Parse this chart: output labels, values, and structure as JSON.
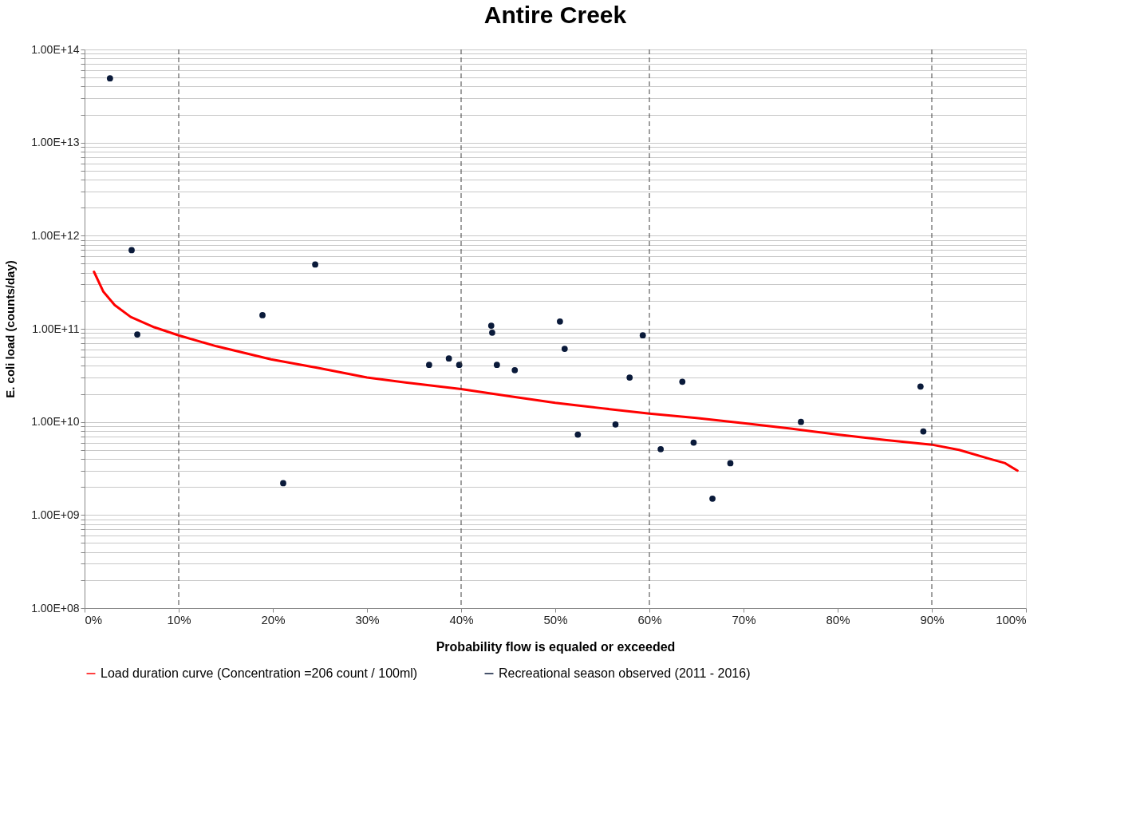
{
  "chart_data": {
    "type": "scatter",
    "title": "Antire Creek",
    "xlabel": "Probability flow is equaled or exceeded",
    "ylabel": "E. coli load (counts/day)",
    "log": "y",
    "grid": "y",
    "legend": "bottom",
    "xlim": [
      0,
      100
    ],
    "xticks": [
      {
        "value": 0,
        "label": "0%"
      },
      {
        "value": 10,
        "label": "10%"
      },
      {
        "value": 20,
        "label": "20%"
      },
      {
        "value": 30,
        "label": "30%"
      },
      {
        "value": 40,
        "label": "40%"
      },
      {
        "value": 50,
        "label": "50%"
      },
      {
        "value": 60,
        "label": "60%"
      },
      {
        "value": 70,
        "label": "70%"
      },
      {
        "value": 80,
        "label": "80%"
      },
      {
        "value": 90,
        "label": "90%"
      },
      {
        "value": 100,
        "label": "100%"
      }
    ],
    "ylim": [
      100000000.0,
      100000000000000.0
    ],
    "yticks": [
      {
        "value": 100000000.0,
        "label": "1.00E+08"
      },
      {
        "value": 200000000.0,
        "label": null
      },
      {
        "value": 300000000.0,
        "label": null
      },
      {
        "value": 400000000.0,
        "label": null
      },
      {
        "value": 500000000.0,
        "label": null
      },
      {
        "value": 600000000.0,
        "label": null
      },
      {
        "value": 700000000.0,
        "label": null
      },
      {
        "value": 800000000.0,
        "label": null
      },
      {
        "value": 900000000.0,
        "label": null
      },
      {
        "value": 1000000000.0,
        "label": "1.00E+09"
      },
      {
        "value": 2000000000.0,
        "label": null
      },
      {
        "value": 3000000000.0,
        "label": null
      },
      {
        "value": 4000000000.0,
        "label": null
      },
      {
        "value": 5000000000.0,
        "label": null
      },
      {
        "value": 6000000000.0,
        "label": null
      },
      {
        "value": 7000000000.0,
        "label": null
      },
      {
        "value": 8000000000.0,
        "label": null
      },
      {
        "value": 9000000000.0,
        "label": null
      },
      {
        "value": 10000000000.0,
        "label": "1.00E+10"
      },
      {
        "value": 20000000000.0,
        "label": null
      },
      {
        "value": 30000000000.0,
        "label": null
      },
      {
        "value": 40000000000.0,
        "label": null
      },
      {
        "value": 50000000000.0,
        "label": null
      },
      {
        "value": 60000000000.0,
        "label": null
      },
      {
        "value": 70000000000.0,
        "label": null
      },
      {
        "value": 80000000000.0,
        "label": null
      },
      {
        "value": 90000000000.0,
        "label": null
      },
      {
        "value": 100000000000.0,
        "label": "1.00E+11"
      },
      {
        "value": 200000000000.0,
        "label": null
      },
      {
        "value": 300000000000.0,
        "label": null
      },
      {
        "value": 400000000000.0,
        "label": null
      },
      {
        "value": 500000000000.0,
        "label": null
      },
      {
        "value": 600000000000.0,
        "label": null
      },
      {
        "value": 700000000000.0,
        "label": null
      },
      {
        "value": 800000000000.0,
        "label": null
      },
      {
        "value": 900000000000.0,
        "label": null
      },
      {
        "value": 1000000000000.0,
        "label": "1.00E+12"
      },
      {
        "value": 2000000000000.0,
        "label": null
      },
      {
        "value": 3000000000000.0,
        "label": null
      },
      {
        "value": 4000000000000.0,
        "label": null
      },
      {
        "value": 5000000000000.0,
        "label": null
      },
      {
        "value": 6000000000000.0,
        "label": null
      },
      {
        "value": 7000000000000.0,
        "label": null
      },
      {
        "value": 8000000000000.0,
        "label": null
      },
      {
        "value": 9000000000000.0,
        "label": null
      },
      {
        "value": 10000000000000.0,
        "label": "1.00E+13"
      },
      {
        "value": 20000000000000.0,
        "label": null
      },
      {
        "value": 30000000000000.0,
        "label": null
      },
      {
        "value": 40000000000000.0,
        "label": null
      },
      {
        "value": 50000000000000.0,
        "label": null
      },
      {
        "value": 60000000000000.0,
        "label": null
      },
      {
        "value": 70000000000000.0,
        "label": null
      },
      {
        "value": 80000000000000.0,
        "label": null
      },
      {
        "value": 90000000000000.0,
        "label": null
      },
      {
        "value": 100000000000000.0,
        "label": "1.00E+14"
      }
    ],
    "ref_lines": [
      {
        "axis": "x",
        "value": 10,
        "line_style": "dashed",
        "color": "#404040"
      },
      {
        "axis": "x",
        "value": 40,
        "line_style": "dashed",
        "color": "#404040"
      },
      {
        "axis": "x",
        "value": 60,
        "line_style": "dashed",
        "color": "#404040"
      },
      {
        "axis": "x",
        "value": 90,
        "line_style": "dashed",
        "color": "#404040"
      }
    ],
    "series": [
      {
        "name": "Load duration curve (Concentration =206 count / 100ml)",
        "type": "line",
        "color": "#ff0000",
        "line_style": "solid",
        "marker": "none",
        "x": [
          1.0,
          2.0,
          3.2,
          4.9,
          7.4,
          10,
          14,
          19.8,
          24.8,
          30,
          34.8,
          40,
          45,
          50,
          55,
          60,
          65,
          70,
          75,
          80,
          85,
          90,
          92.9,
          96.2,
          97.8,
          99.1
        ],
        "values": [
          410000000000.0,
          250000000000.0,
          180000000000.0,
          134000000000.0,
          104000000000.0,
          85000000000.0,
          65000000000.0,
          47000000000.0,
          38000000000.0,
          30000000000.0,
          26000000000.0,
          22500000000.0,
          19000000000.0,
          16000000000.0,
          14000000000.0,
          12300000000.0,
          11000000000.0,
          9700000000.0,
          8500000000.0,
          7300000000.0,
          6400000000.0,
          5700000000.0,
          5000000000.0,
          4000000000.0,
          3600000000.0,
          3000000000.0
        ]
      },
      {
        "name": "Recreational season observed (2011 - 2016)",
        "type": "scatter",
        "color": "#0a1a3a",
        "marker": "circle",
        "x": [
          2.7,
          5.0,
          5.6,
          18.9,
          21.1,
          24.5,
          36.6,
          38.7,
          39.8,
          43.2,
          43.3,
          43.8,
          45.7,
          50.5,
          51.0,
          52.4,
          56.4,
          57.9,
          59.3,
          61.2,
          63.5,
          64.7,
          66.7,
          68.6,
          76.1,
          88.8,
          89.1
        ],
        "values": [
          49000000000000.0,
          700000000000.0,
          87000000000.0,
          140000000000.0,
          2200000000.0,
          490000000000.0,
          41000000000.0,
          48000000000.0,
          41000000000.0,
          108000000000.0,
          91000000000.0,
          41000000000.0,
          36000000000.0,
          120000000000.0,
          61000000000.0,
          7300000000.0,
          9400000000.0,
          30000000000.0,
          85000000000.0,
          5100000000.0,
          27000000000.0,
          6000000000.0,
          1500000000.0,
          3600000000.0,
          10000000000.0,
          24000000000.0,
          7900000000.0
        ]
      }
    ]
  }
}
